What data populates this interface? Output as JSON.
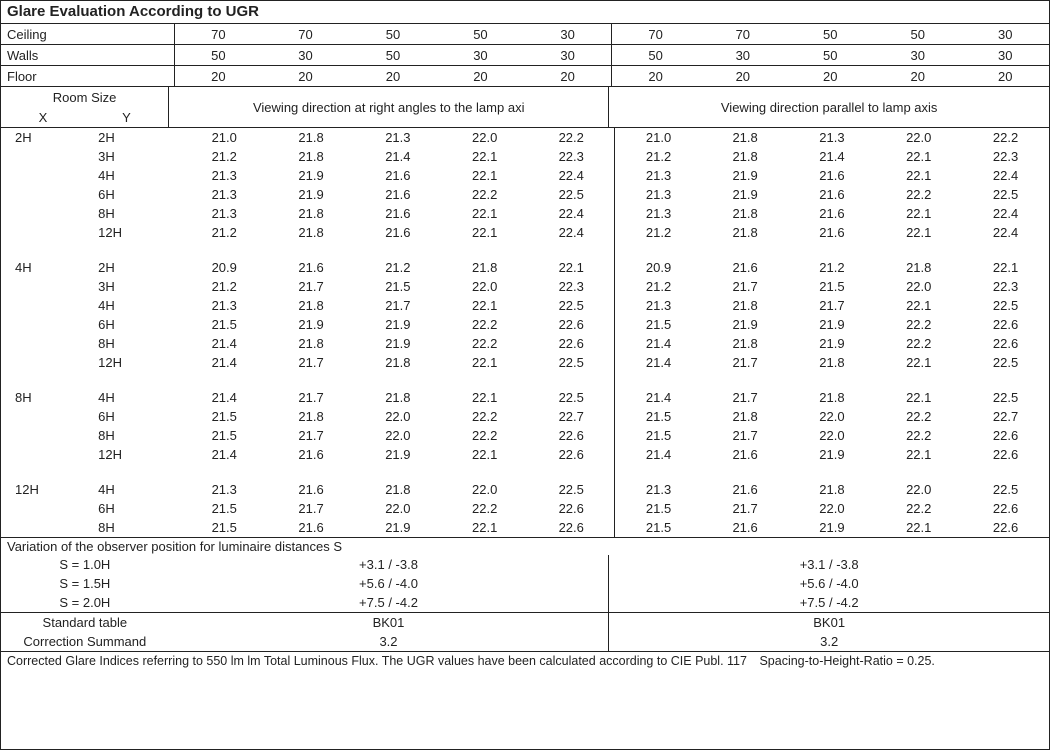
{
  "title": "Glare Evaluation According to UGR",
  "header_rows": [
    {
      "label": "Ceiling",
      "left": [
        "70",
        "70",
        "50",
        "50",
        "30"
      ],
      "right": [
        "70",
        "70",
        "50",
        "50",
        "30"
      ]
    },
    {
      "label": "Walls",
      "left": [
        "50",
        "30",
        "50",
        "30",
        "30"
      ],
      "right": [
        "50",
        "30",
        "50",
        "30",
        "30"
      ]
    },
    {
      "label": "Floor",
      "left": [
        "20",
        "20",
        "20",
        "20",
        "20"
      ],
      "right": [
        "20",
        "20",
        "20",
        "20",
        "20"
      ]
    }
  ],
  "room_size_label": "Room Size",
  "x_label": "X",
  "y_label": "Y",
  "viewdir_left": "Viewing direction at right angles to the lamp axi",
  "viewdir_right": "Viewing direction parallel to lamp axis",
  "groups": [
    {
      "x": "2H",
      "rows": [
        {
          "y": "2H",
          "l": [
            "21.0",
            "21.8",
            "21.3",
            "22.0",
            "22.2"
          ],
          "r": [
            "21.0",
            "21.8",
            "21.3",
            "22.0",
            "22.2"
          ]
        },
        {
          "y": "3H",
          "l": [
            "21.2",
            "21.8",
            "21.4",
            "22.1",
            "22.3"
          ],
          "r": [
            "21.2",
            "21.8",
            "21.4",
            "22.1",
            "22.3"
          ]
        },
        {
          "y": "4H",
          "l": [
            "21.3",
            "21.9",
            "21.6",
            "22.1",
            "22.4"
          ],
          "r": [
            "21.3",
            "21.9",
            "21.6",
            "22.1",
            "22.4"
          ]
        },
        {
          "y": "6H",
          "l": [
            "21.3",
            "21.9",
            "21.6",
            "22.2",
            "22.5"
          ],
          "r": [
            "21.3",
            "21.9",
            "21.6",
            "22.2",
            "22.5"
          ]
        },
        {
          "y": "8H",
          "l": [
            "21.3",
            "21.8",
            "21.6",
            "22.1",
            "22.4"
          ],
          "r": [
            "21.3",
            "21.8",
            "21.6",
            "22.1",
            "22.4"
          ]
        },
        {
          "y": "12H",
          "l": [
            "21.2",
            "21.8",
            "21.6",
            "22.1",
            "22.4"
          ],
          "r": [
            "21.2",
            "21.8",
            "21.6",
            "22.1",
            "22.4"
          ]
        }
      ]
    },
    {
      "x": "4H",
      "rows": [
        {
          "y": "2H",
          "l": [
            "20.9",
            "21.6",
            "21.2",
            "21.8",
            "22.1"
          ],
          "r": [
            "20.9",
            "21.6",
            "21.2",
            "21.8",
            "22.1"
          ]
        },
        {
          "y": "3H",
          "l": [
            "21.2",
            "21.7",
            "21.5",
            "22.0",
            "22.3"
          ],
          "r": [
            "21.2",
            "21.7",
            "21.5",
            "22.0",
            "22.3"
          ]
        },
        {
          "y": "4H",
          "l": [
            "21.3",
            "21.8",
            "21.7",
            "22.1",
            "22.5"
          ],
          "r": [
            "21.3",
            "21.8",
            "21.7",
            "22.1",
            "22.5"
          ]
        },
        {
          "y": "6H",
          "l": [
            "21.5",
            "21.9",
            "21.9",
            "22.2",
            "22.6"
          ],
          "r": [
            "21.5",
            "21.9",
            "21.9",
            "22.2",
            "22.6"
          ]
        },
        {
          "y": "8H",
          "l": [
            "21.4",
            "21.8",
            "21.9",
            "22.2",
            "22.6"
          ],
          "r": [
            "21.4",
            "21.8",
            "21.9",
            "22.2",
            "22.6"
          ]
        },
        {
          "y": "12H",
          "l": [
            "21.4",
            "21.7",
            "21.8",
            "22.1",
            "22.5"
          ],
          "r": [
            "21.4",
            "21.7",
            "21.8",
            "22.1",
            "22.5"
          ]
        }
      ]
    },
    {
      "x": "8H",
      "rows": [
        {
          "y": "4H",
          "l": [
            "21.4",
            "21.7",
            "21.8",
            "22.1",
            "22.5"
          ],
          "r": [
            "21.4",
            "21.7",
            "21.8",
            "22.1",
            "22.5"
          ]
        },
        {
          "y": "6H",
          "l": [
            "21.5",
            "21.8",
            "22.0",
            "22.2",
            "22.7"
          ],
          "r": [
            "21.5",
            "21.8",
            "22.0",
            "22.2",
            "22.7"
          ]
        },
        {
          "y": "8H",
          "l": [
            "21.5",
            "21.7",
            "22.0",
            "22.2",
            "22.6"
          ],
          "r": [
            "21.5",
            "21.7",
            "22.0",
            "22.2",
            "22.6"
          ]
        },
        {
          "y": "12H",
          "l": [
            "21.4",
            "21.6",
            "21.9",
            "22.1",
            "22.6"
          ],
          "r": [
            "21.4",
            "21.6",
            "21.9",
            "22.1",
            "22.6"
          ]
        }
      ]
    },
    {
      "x": "12H",
      "rows": [
        {
          "y": "4H",
          "l": [
            "21.3",
            "21.6",
            "21.8",
            "22.0",
            "22.5"
          ],
          "r": [
            "21.3",
            "21.6",
            "21.8",
            "22.0",
            "22.5"
          ]
        },
        {
          "y": "6H",
          "l": [
            "21.5",
            "21.7",
            "22.0",
            "22.2",
            "22.6"
          ],
          "r": [
            "21.5",
            "21.7",
            "22.0",
            "22.2",
            "22.6"
          ]
        },
        {
          "y": "8H",
          "l": [
            "21.5",
            "21.6",
            "21.9",
            "22.1",
            "22.6"
          ],
          "r": [
            "21.5",
            "21.6",
            "21.9",
            "22.1",
            "22.6"
          ]
        }
      ]
    }
  ],
  "variation_title": "Variation of the observer position for luminaire distances S",
  "variation_rows": [
    {
      "s": "S = 1.0H",
      "l": "+3.1 / -3.8",
      "r": "+3.1 / -3.8"
    },
    {
      "s": "S = 1.5H",
      "l": "+5.6 / -4.0",
      "r": "+5.6 / -4.0"
    },
    {
      "s": "S = 2.0H",
      "l": "+7.5 / -4.2",
      "r": "+7.5 / -4.2"
    }
  ],
  "std_table_label": "Standard table",
  "std_table_l": "BK01",
  "std_table_r": "BK01",
  "corr_label": "Correction Summand",
  "corr_l": "3.2",
  "corr_r": "3.2",
  "footnote": "Corrected Glare Indices referring to 550 lm lm Total Luminous Flux. The UGR values have been calculated according to CIE Publ. 117 Spacing-to-Height-Ratio = 0.25."
}
